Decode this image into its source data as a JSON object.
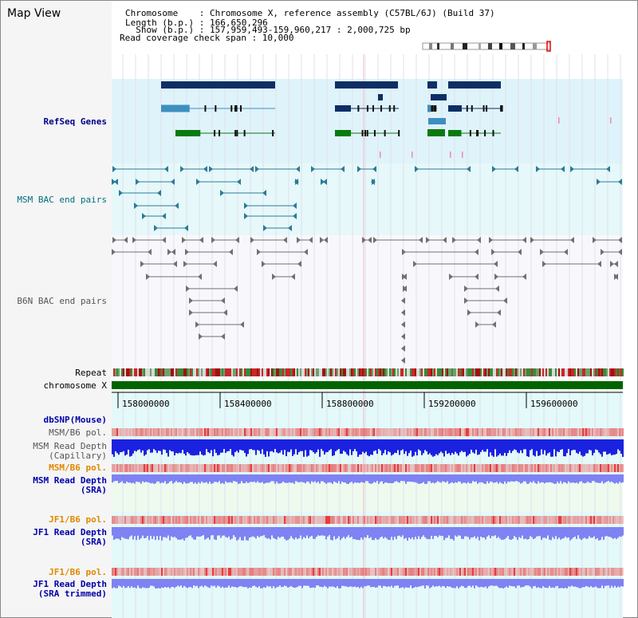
{
  "view_title": "Map View",
  "info": {
    "chromosome": "Chromosome    : Chromosome X, reference assembly (C57BL/6J) (Build 37)",
    "length": "Length (b.p.) : 166,650,296",
    "show": "  Show (b.p.) : 157,959,493-159,960,217 : 2,000,725 bp",
    "coverage": "Read coverage check span : 10,000"
  },
  "tracks": {
    "refseq": "RefSeq Genes",
    "msm_bac": "MSM BAC end pairs",
    "b6n_bac": "B6N BAC end pairs",
    "repeat": "Repeat",
    "chromosome": "chromosome X",
    "dbsnp": "dbSNP(Mouse)",
    "msm_b6_pol_1": "MSM/B6 pol.",
    "msm_depth_cap_1": "MSM Read Depth",
    "msm_depth_cap_2": "(Capillary)",
    "msm_b6_pol_2": "MSM/B6 pol.",
    "msm_depth_sra_1": "MSM Read Depth",
    "msm_depth_sra_2": "(SRA)",
    "jf1_b6_pol_1": "JF1/B6 pol.",
    "jf1_depth_sra_1": "JF1 Read Depth",
    "jf1_depth_sra_2": "(SRA)",
    "jf1_b6_pol_2": "JF1/B6 pol.",
    "jf1_depth_trim_1": "JF1 Read Depth",
    "jf1_depth_trim_2": "(SRA trimmed)"
  },
  "axis_ticks": [
    "158000000",
    "158400000",
    "158800000",
    "159200000",
    "159600000"
  ],
  "colors": {
    "refseq_bg": "#dff3fb",
    "msm_bg": "#e6f8fa",
    "b6n_bg": "#f8f8fc",
    "gene_dark": "#0d2f66",
    "gene_cyan": "#3d8fbf",
    "gene_green": "#0a7a10",
    "bac_teal": "#2c7b95",
    "bac_gray": "#707070",
    "chromosome_bar": "#006400",
    "depth_blue": "#1a22e0",
    "depth_light": "#7f82f2",
    "pol_red": "#e83c3c"
  }
}
